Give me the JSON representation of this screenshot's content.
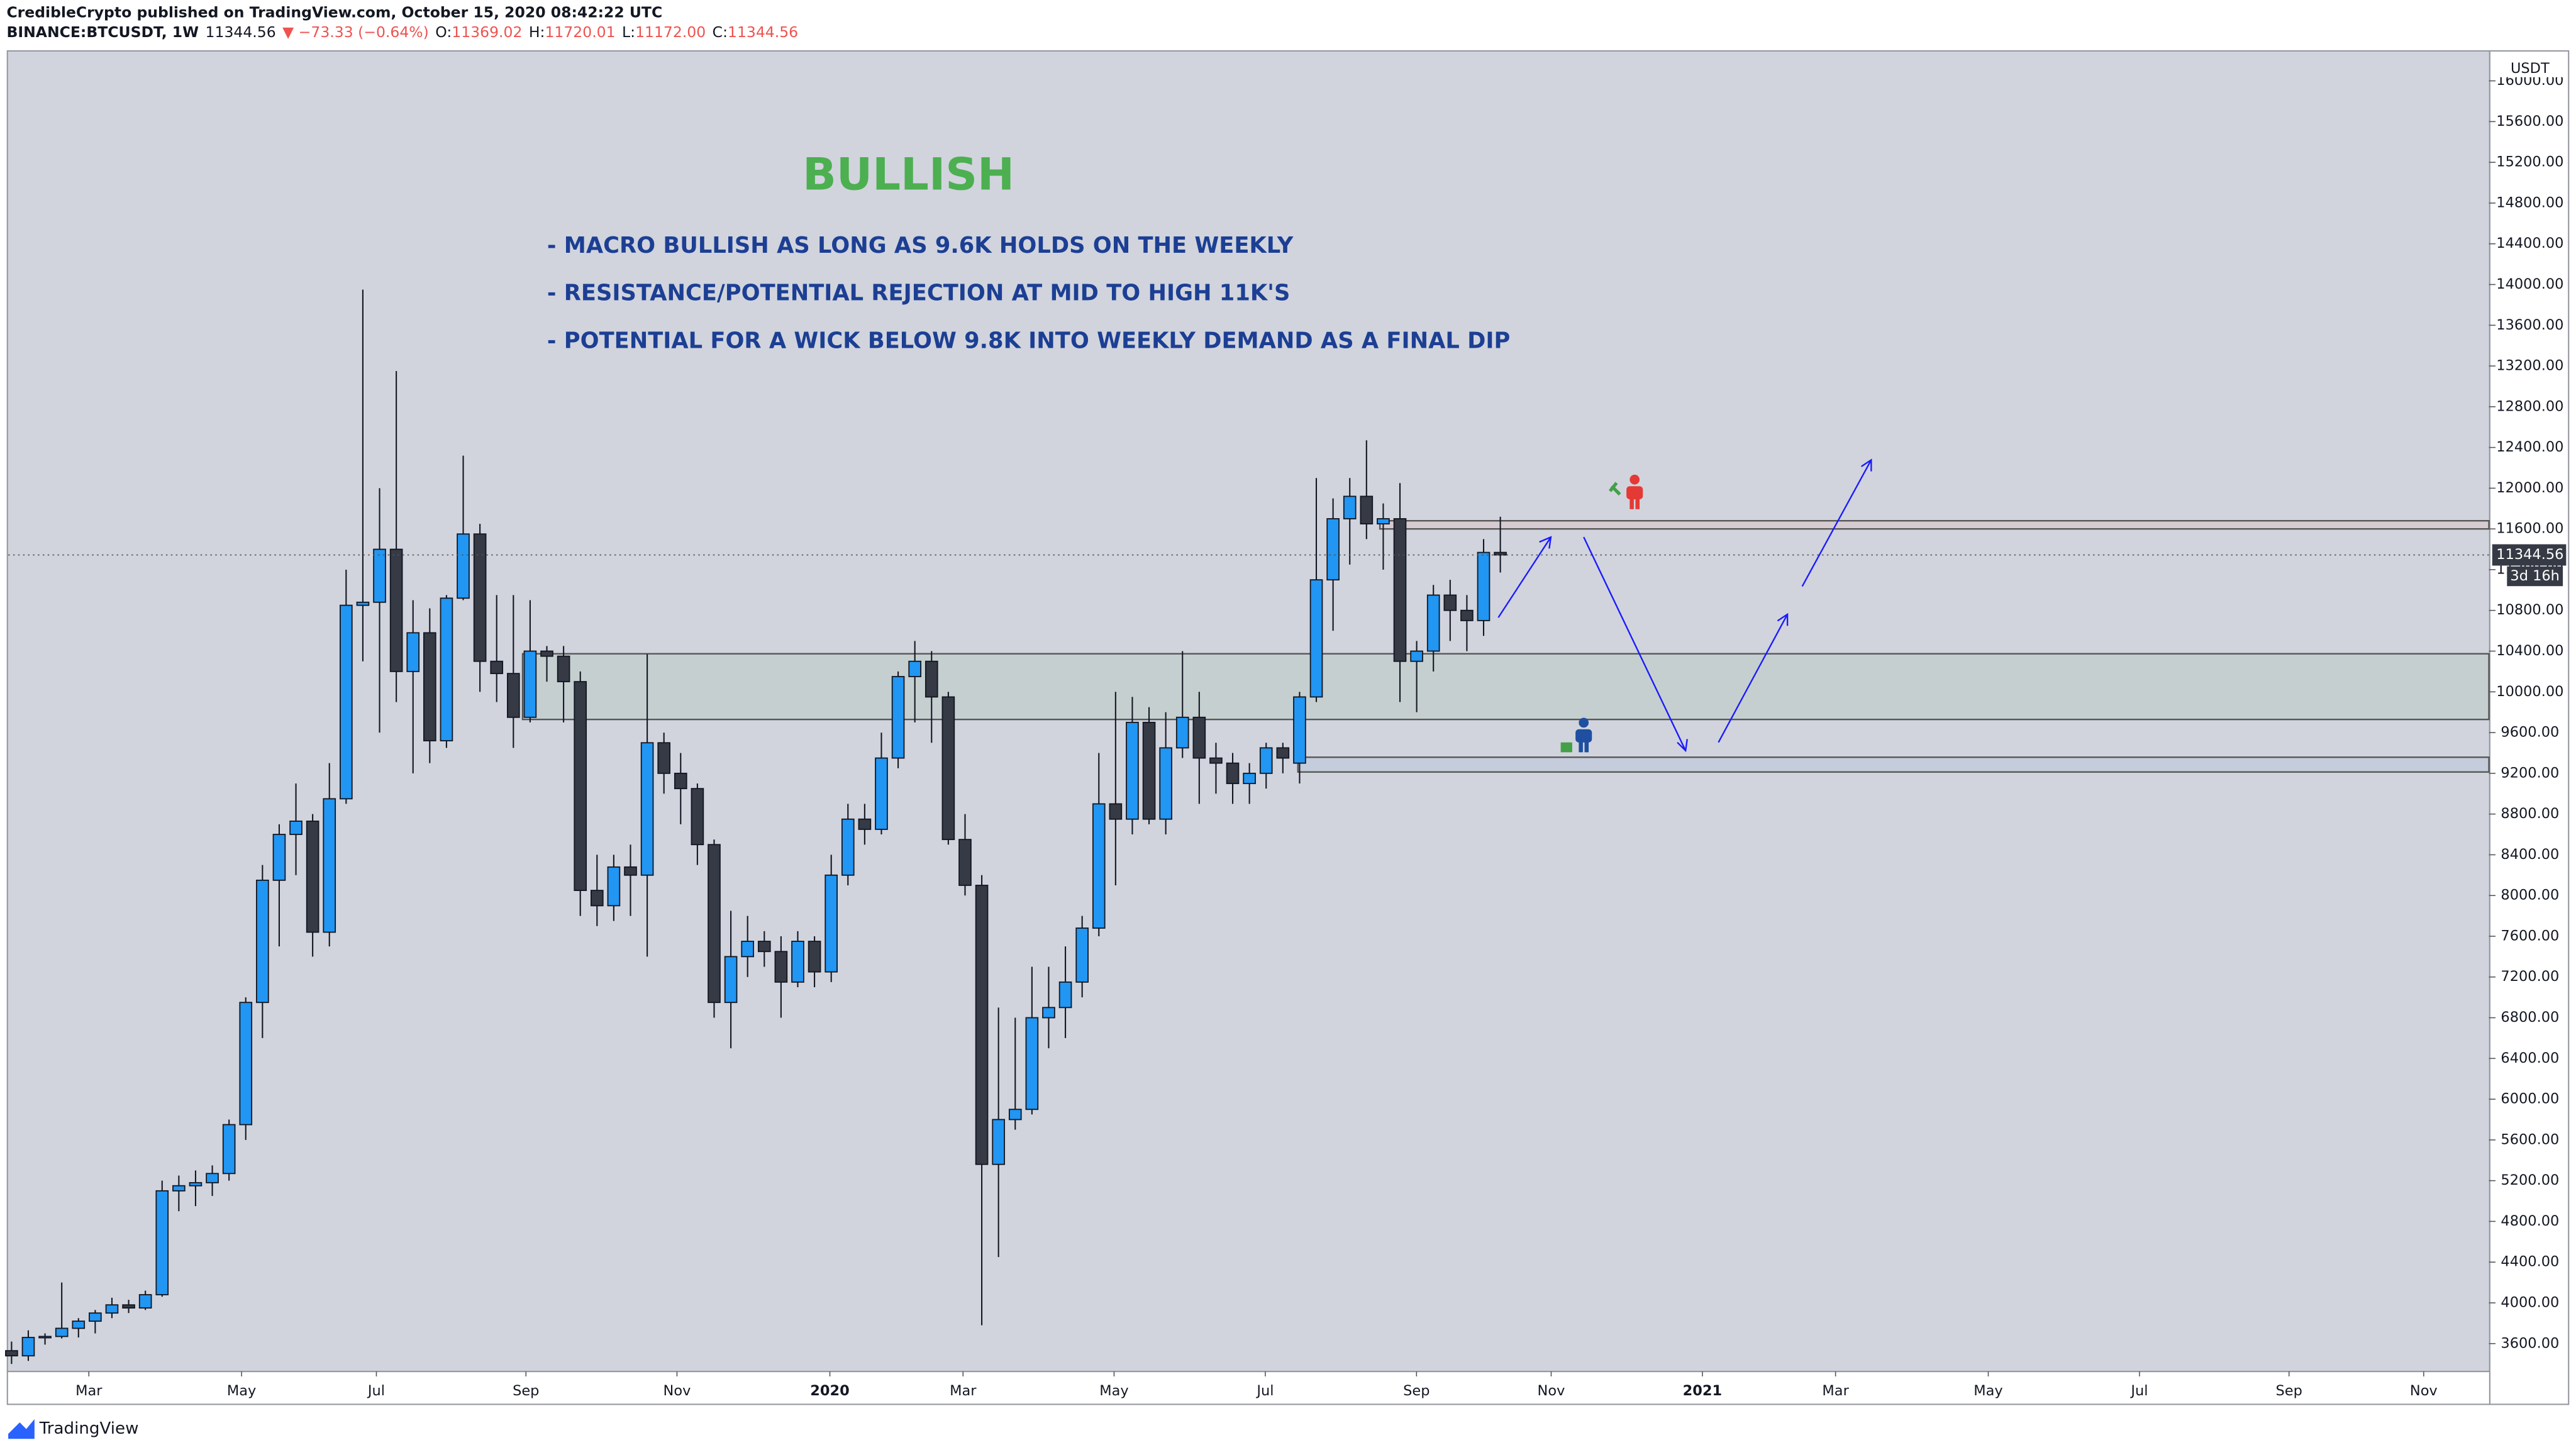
{
  "header": {
    "published": "CredibleCrypto published on TradingView.com, October 15, 2020 08:42:22 UTC",
    "symbol": "BINANCE:BTCUSDT, 1W",
    "price": "11344.56",
    "change": "▼ −73.33 (−0.64%)",
    "ohlc": [
      {
        "label": "O:",
        "value": "11369.02"
      },
      {
        "label": "H:",
        "value": "11720.01"
      },
      {
        "label": "L:",
        "value": "11172.00"
      },
      {
        "label": "C:",
        "value": "11344.56"
      }
    ]
  },
  "chart_data": {
    "type": "candlestick",
    "currency": "USDT",
    "countdown": "3d 16h",
    "open": [
      3530,
      3480,
      3660,
      3670,
      3750,
      3820,
      3900,
      3980,
      3950,
      4080,
      5100,
      5150,
      5180,
      5270,
      5750,
      6950,
      8150,
      8600,
      8730,
      7640,
      8950,
      10850,
      10880,
      11400,
      10200,
      10580,
      9520,
      10920,
      11550,
      10300,
      10180,
      9750,
      10400,
      10350,
      10100,
      8050,
      7900,
      8280,
      8200,
      9500,
      9200,
      9050,
      8500,
      6950,
      7400,
      7550,
      7450,
      7150,
      7550,
      7250,
      8200,
      8750,
      8650,
      9350,
      10150,
      10300,
      9950,
      8550,
      8100,
      5360,
      5800,
      5900,
      6800,
      6900,
      7150,
      7680,
      8900,
      8750,
      9700,
      8750,
      9450,
      9750,
      9350,
      9300,
      9100,
      9200,
      9450,
      9300,
      9950,
      11100,
      11700,
      11920,
      11650,
      11700,
      10300,
      10400,
      10950,
      10800,
      10700,
      11369.02
    ],
    "high": [
      3620,
      3730,
      3700,
      4200,
      3850,
      3930,
      4050,
      4030,
      4120,
      5200,
      5250,
      5300,
      5350,
      5800,
      7000,
      8300,
      8700,
      9100,
      8800,
      9300,
      11200,
      13950,
      12000,
      13150,
      10900,
      10820,
      10950,
      12320,
      11650,
      10950,
      10950,
      10900,
      10450,
      10450,
      10200,
      8400,
      8400,
      8500,
      10370,
      9600,
      9400,
      9100,
      8550,
      7850,
      7800,
      7650,
      7600,
      7650,
      7600,
      8400,
      8900,
      8900,
      9600,
      10200,
      10500,
      10400,
      10000,
      8800,
      8200,
      6900,
      6800,
      7300,
      7300,
      7500,
      7800,
      9400,
      10000,
      9950,
      9850,
      9800,
      10400,
      10000,
      9500,
      9400,
      9300,
      9500,
      9500,
      10000,
      12100,
      11900,
      12100,
      12470,
      11850,
      12050,
      10500,
      11050,
      11100,
      10950,
      11500,
      11720.01
    ],
    "low": [
      3400,
      3430,
      3590,
      3650,
      3660,
      3700,
      3850,
      3900,
      3930,
      4060,
      4900,
      4950,
      5050,
      5200,
      5600,
      6600,
      7500,
      8200,
      7400,
      7500,
      8900,
      10300,
      9600,
      9900,
      9200,
      9300,
      9450,
      10900,
      10000,
      9900,
      9450,
      9700,
      10100,
      9700,
      7800,
      7700,
      7750,
      7800,
      7400,
      9000,
      8700,
      8300,
      6800,
      6500,
      7200,
      7300,
      6800,
      7100,
      7100,
      7150,
      8100,
      8500,
      8600,
      9250,
      9700,
      9500,
      8500,
      8000,
      3780,
      4450,
      5700,
      5850,
      6500,
      6600,
      7000,
      7600,
      8100,
      8600,
      8700,
      8600,
      9350,
      8900,
      9000,
      8900,
      8900,
      9050,
      9200,
      9100,
      9900,
      10600,
      11250,
      11500,
      11200,
      9900,
      9800,
      10200,
      10500,
      10400,
      10550,
      11172
    ],
    "close": [
      3480,
      3660,
      3670,
      3750,
      3820,
      3900,
      3980,
      3950,
      4080,
      5100,
      5150,
      5180,
      5270,
      5750,
      6950,
      8150,
      8600,
      8730,
      7640,
      8950,
      10850,
      10880,
      11400,
      10200,
      10580,
      9520,
      10920,
      11550,
      10300,
      10180,
      9750,
      10400,
      10350,
      10100,
      8050,
      7900,
      8280,
      8200,
      9500,
      9200,
      9050,
      8500,
      6950,
      7400,
      7550,
      7450,
      7150,
      7550,
      7250,
      8200,
      8750,
      8650,
      9350,
      10150,
      10300,
      9950,
      8550,
      8100,
      5360,
      5800,
      5900,
      6800,
      6900,
      7150,
      7680,
      8900,
      8750,
      9700,
      8750,
      9450,
      9750,
      9350,
      9300,
      9100,
      9200,
      9450,
      9350,
      9950,
      11100,
      11700,
      11920,
      11650,
      11700,
      10300,
      10400,
      10950,
      10800,
      10700,
      11369.02,
      11344.56
    ],
    "up_color": "#2196f3",
    "down_color": "#363a45",
    "xlim": [
      -0.2,
      148.1
    ],
    "ylim": [
      3326,
      16294
    ],
    "xticks": [
      {
        "value": 4.62,
        "label": "Mar"
      },
      {
        "value": 13.75,
        "label": "May"
      },
      {
        "value": 21.81,
        "label": "Jul"
      },
      {
        "value": 30.75,
        "label": "Sep"
      },
      {
        "value": 39.78,
        "label": "Nov"
      },
      {
        "value": 48.92,
        "label": "2020"
      },
      {
        "value": 56.88,
        "label": "Mar"
      },
      {
        "value": 65.91,
        "label": "May"
      },
      {
        "value": 74.95,
        "label": "Jul"
      },
      {
        "value": 83.99,
        "label": "Sep"
      },
      {
        "value": 92.04,
        "label": "Nov"
      },
      {
        "value": 101.08,
        "label": "2021"
      },
      {
        "value": 109.04,
        "label": "Mar"
      },
      {
        "value": 118.17,
        "label": "May"
      },
      {
        "value": 127.21,
        "label": "Jul"
      },
      {
        "value": 136.15,
        "label": "Sep"
      },
      {
        "value": 144.2,
        "label": "Nov"
      }
    ],
    "yticks": [
      {
        "value": 3600,
        "label": "3600.00"
      },
      {
        "value": 4000,
        "label": "4000.00"
      },
      {
        "value": 4400,
        "label": "4400.00"
      },
      {
        "value": 4800,
        "label": "4800.00"
      },
      {
        "value": 5200,
        "label": "5200.00"
      },
      {
        "value": 5600,
        "label": "5600.00"
      },
      {
        "value": 6000,
        "label": "6000.00"
      },
      {
        "value": 6400,
        "label": "6400.00"
      },
      {
        "value": 6800,
        "label": "6800.00"
      },
      {
        "value": 7200,
        "label": "7200.00"
      },
      {
        "value": 7600,
        "label": "7600.00"
      },
      {
        "value": 8000,
        "label": "8000.00"
      },
      {
        "value": 8400,
        "label": "8400.00"
      },
      {
        "value": 8800,
        "label": "8800.00"
      },
      {
        "value": 9200,
        "label": "9200.00"
      },
      {
        "value": 9600,
        "label": "9600.00"
      },
      {
        "value": 10000,
        "label": "10000.00"
      },
      {
        "value": 10400,
        "label": "10400.00"
      },
      {
        "value": 10800,
        "label": "10800.00"
      },
      {
        "value": 11200,
        "label": "11200.00"
      },
      {
        "value": 11600,
        "label": "11600.00"
      },
      {
        "value": 12000,
        "label": "12000.00"
      },
      {
        "value": 12400,
        "label": "12400.00"
      },
      {
        "value": 12800,
        "label": "12800.00"
      },
      {
        "value": 13200,
        "label": "13200.00"
      },
      {
        "value": 13600,
        "label": "13600.00"
      },
      {
        "value": 14000,
        "label": "14000.00"
      },
      {
        "value": 14400,
        "label": "14400.00"
      },
      {
        "value": 14800,
        "label": "14800.00"
      },
      {
        "value": 15200,
        "label": "15200.00"
      },
      {
        "value": 15600,
        "label": "15600.00"
      },
      {
        "value": 16000,
        "label": "16000.00"
      }
    ],
    "zones": [
      {
        "low": 9729,
        "high": 10374,
        "start": 30.55,
        "color": "#c3cdcc"
      },
      {
        "low": 9213,
        "high": 9358,
        "start": 76.9,
        "color": "#c2c9db"
      },
      {
        "low": 11600,
        "high": 11680,
        "start": 81.8,
        "color": "#d8c8d0"
      }
    ],
    "annotations": {
      "title": "BULLISH",
      "lines": [
        "- MACRO BULLISH AS LONG AS 9.6K HOLDS ON THE WEEKLY",
        "- RESISTANCE/POTENTIAL REJECTION AT MID TO HIGH 11K'S",
        "- POTENTIAL FOR A WICK BELOW 9.8K INTO WEEKLY DEMAND AS A FINAL DIP"
      ]
    }
  },
  "footer": {
    "brand": "TradingView"
  }
}
